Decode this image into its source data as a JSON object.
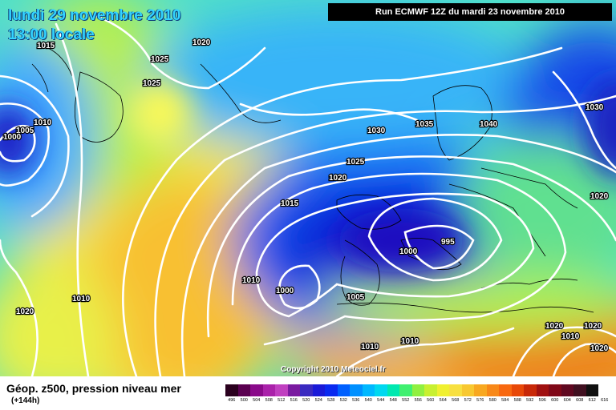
{
  "header": {
    "date": "lundi 29 novembre 2010",
    "local_time": "13:00 locale",
    "run": "Run ECMWF 12Z du mardi 23 novembre 2010"
  },
  "copyright": "Copyright 2010 Meteociel.fr",
  "footer": {
    "field": "Géop. z500, pression niveau mer",
    "lead_time": "(+144h)"
  },
  "pressure_labels": [
    {
      "text": "1015"
    },
    {
      "text": "1010"
    },
    {
      "text": "1005"
    },
    {
      "text": "1000"
    },
    {
      "text": "1020"
    },
    {
      "text": "1025"
    },
    {
      "text": "1025"
    },
    {
      "text": "1030"
    },
    {
      "text": "1035"
    },
    {
      "text": "1040"
    },
    {
      "text": "1030"
    },
    {
      "text": "1025"
    },
    {
      "text": "1020"
    },
    {
      "text": "1015"
    },
    {
      "text": "995"
    },
    {
      "text": "1000"
    },
    {
      "text": "1010"
    },
    {
      "text": "1000"
    },
    {
      "text": "1005"
    },
    {
      "text": "1010"
    },
    {
      "text": "1020"
    },
    {
      "text": "1020"
    },
    {
      "text": "1020"
    },
    {
      "text": "1020"
    },
    {
      "text": "1010"
    },
    {
      "text": "1010"
    },
    {
      "text": "1010"
    },
    {
      "text": "1020"
    }
  ],
  "legend_scale": {
    "ticks": [
      "496",
      "500",
      "504",
      "508",
      "512",
      "516",
      "520",
      "524",
      "528",
      "532",
      "536",
      "540",
      "544",
      "548",
      "552",
      "556",
      "560",
      "564",
      "568",
      "572",
      "576",
      "580",
      "584",
      "588",
      "592",
      "596",
      "600",
      "604",
      "608",
      "612",
      "616"
    ],
    "colors": [
      "#2a001e",
      "#5a0050",
      "#8a0a8a",
      "#aa22aa",
      "#c040c0",
      "#7a1aa0",
      "#3a2ac0",
      "#1a1ad8",
      "#0a2af0",
      "#0060ff",
      "#0090ff",
      "#00b8ff",
      "#00d8f0",
      "#00e8b0",
      "#40f070",
      "#90f040",
      "#c8f030",
      "#f0f030",
      "#f8e040",
      "#f8c830",
      "#f8a820",
      "#f88818",
      "#f86810",
      "#e84808",
      "#c82808",
      "#a01010",
      "#800818",
      "#600820",
      "#401020",
      "#101010"
    ]
  }
}
